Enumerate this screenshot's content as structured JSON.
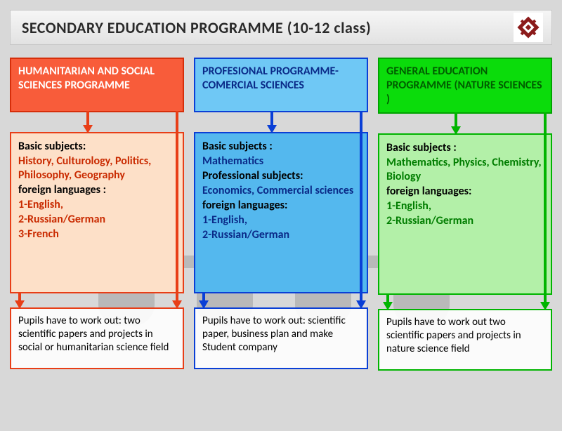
{
  "title": "SECONDARY EDUCATION PROGRAMME (10-12 class)",
  "logo": {
    "bg": "#ffffff",
    "color": "#8b1a1a"
  },
  "background_figures_color": "#7a7a7a",
  "columns": [
    {
      "id": "humanitarian",
      "header": "HUMANITARIAN AND SOCIAL SCIENCES PROGRAMME",
      "header_bg": "#f85c3a",
      "header_border": "#d62e0a",
      "header_text": "#ffffff",
      "body_bg": "#fde0c8",
      "body_border": "#e83e17",
      "accent_color": "#c92a00",
      "body": [
        {
          "label": "Basic subjects",
          "text": "History, Culturology, Politics, Philosophy, Geography"
        },
        {
          "label": "foreign languages :",
          "text": "1-English,\n2-Russian/German\n3-French"
        }
      ],
      "footer_border": "#e83e17",
      "footer": "Pupils have to work out: two scientific papers and projects in social or humanitarian science field",
      "arrow_color": "#e83e17"
    },
    {
      "id": "professional",
      "header": "PROFESIONAL PROGRAMME- COMERCIAL SCIENCES",
      "header_bg": "#6fc8f5",
      "header_border": "#0a3fd6",
      "header_text": "#0a2a88",
      "body_bg": "#54b8ee",
      "body_border": "#0a3fd6",
      "accent_color": "#0a2a88",
      "body": [
        {
          "label": "Basic subjects :",
          "text": "Mathematics"
        },
        {
          "label": "Professional subjects:",
          "text": "Economics, Commercial sciences"
        },
        {
          "label": "foreign languages:",
          "text": "1-English,\n2-Russian/German"
        }
      ],
      "footer_border": "#0a3fd6",
      "footer": "Pupils have to work out: scientific paper, business plan and make Student company",
      "arrow_color": "#0a3fd6"
    },
    {
      "id": "general",
      "header": "GENERAL EDUCATION PROGRAMME (NATURE SCIENCES )",
      "header_bg": "#0bdc0b",
      "header_border": "#00a300",
      "header_text": "#005c00",
      "body_bg": "#b3f0a8",
      "body_border": "#00b400",
      "accent_color": "#007d00",
      "body": [
        {
          "label": "Basic subjects :",
          "text": "Mathematics, Physics, Chemistry, Biology"
        },
        {
          "label": "foreign languages:",
          "text": "1-English,\n2-Russian/German"
        }
      ],
      "footer_border": "#00b400",
      "footer": "Pupils have to work out two scientific papers and projects in nature science field",
      "arrow_color": "#00b400"
    }
  ]
}
